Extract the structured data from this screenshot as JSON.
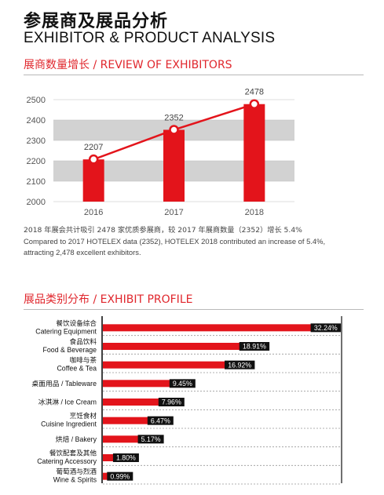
{
  "header": {
    "title_cn": "参展商及展品分析",
    "title_en": "EXHIBITOR & PRODUCT ANALYSIS"
  },
  "section1": {
    "title": "展商数量增长 / REVIEW OF EXHIBITORS",
    "description_cn": "2018 年展会共计吸引 2478 家优质参展商，较 2017 年展商数量（2352）增长 5.4%",
    "description_en_1": "Compared to 2017 HOTELEX data (2352), HOTELEX 2018 contributed an increase of 5.4%,",
    "description_en_2": "attracting 2,478 excellent exhibitors."
  },
  "section2": {
    "title": "展品类别分布 / EXHIBIT PROFILE"
  },
  "colors": {
    "accent": "#e0262c",
    "bar": "#e3141b",
    "band": "#d2d2d2",
    "pct_box": "#111111"
  },
  "chart_data": [
    {
      "type": "bar",
      "title": "展商数量增长 / REVIEW OF EXHIBITORS",
      "categories": [
        "2016",
        "2017",
        "2018"
      ],
      "values": [
        2207,
        2352,
        2478
      ],
      "line_overlay": true,
      "data_labels": [
        "2207",
        "2352",
        "2478"
      ],
      "ylim": [
        2000,
        2500
      ],
      "yticks": [
        2000,
        2100,
        2200,
        2300,
        2400,
        2500
      ],
      "grid": "alternating gray bands"
    },
    {
      "type": "bar",
      "orientation": "horizontal",
      "title": "展品类别分布 / EXHIBIT PROFILE",
      "categories": [
        {
          "cn": "餐饮设备综合",
          "en": "Catering Equipment"
        },
        {
          "cn": "食品饮料",
          "en": "Food & Beverage"
        },
        {
          "cn": "咖啡与茶",
          "en": "Coffee & Tea"
        },
        {
          "cn": "",
          "en": "桌面用品 / Tableware"
        },
        {
          "cn": "",
          "en": "冰淇淋 / Ice Cream"
        },
        {
          "cn": "烹饪食材",
          "en": "Cuisine Ingredient"
        },
        {
          "cn": "",
          "en": "烘焙 / Bakery"
        },
        {
          "cn": "餐饮配套及其他",
          "en": "Catering Accessory"
        },
        {
          "cn": "葡萄酒与烈酒",
          "en": "Wine & Spirits"
        }
      ],
      "values": [
        32.24,
        18.91,
        16.92,
        9.45,
        7.96,
        6.47,
        5.17,
        1.8,
        0.99
      ],
      "data_labels": [
        "32.24%",
        "18.91%",
        "16.92%",
        "9.45%",
        "7.96%",
        "6.47%",
        "5.17%",
        "1.80%",
        "0.99%"
      ],
      "xlim": [
        0,
        32.24
      ]
    }
  ]
}
